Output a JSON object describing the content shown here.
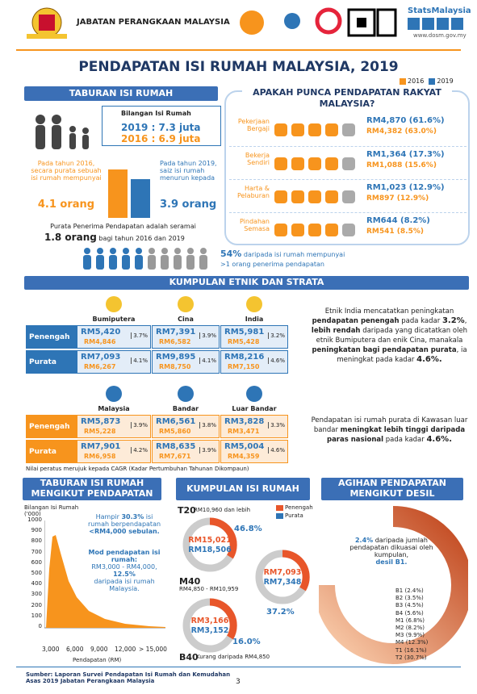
{
  "header": {
    "org": "JABATAN PERANGKAAN MALAYSIA",
    "brand": "StatsMalaysia",
    "url": "www.dosm.gov.my"
  },
  "title": "PENDAPATAN ISI RUMAH MALAYSIA, 2019",
  "legend": [
    {
      "label": "2016",
      "color": "#f7941d"
    },
    {
      "label": "2019",
      "color": "#2e75b6"
    }
  ],
  "household": {
    "heading": "TABURAN ISI RUMAH",
    "count_label": "Bilangan Isi Rumah",
    "count_2019": "2019 : 7.3 juta",
    "count_2016": "2016 : 6.9 juta",
    "size_2016_text": "Pada tahun 2016, secara purata sebuah isi rumah mempunyai",
    "size_2016": "4.1 orang",
    "size_2019_text": "Pada tahun 2019, saiz isi rumah menurun kepada",
    "size_2019": "3.9 orang",
    "earners_text": "Purata Penerima Pendapatan adalah seramai",
    "earners_value": "1.8 orang",
    "earners_suffix": "bagi tahun 2016 dan 2019",
    "share": "54%",
    "share_text": "daripada isi rumah mempunyai",
    "share_text2": ">1 orang penerima pendapatan"
  },
  "sources": {
    "heading": "APAKAH PUNCA PENDAPATAN RAKYAT MALAYSIA?",
    "rows": [
      {
        "label": "Pekerjaan Bergaji",
        "v2019": "RM4,870 (61.6%)",
        "v2016": "RM4,382 (63.0%)"
      },
      {
        "label": "Bekerja Sendiri",
        "v2019": "RM1,364 (17.3%)",
        "v2016": "RM1,088 (15.6%)"
      },
      {
        "label": "Harta & Pelaburan",
        "v2019": "RM1,023 (12.9%)",
        "v2016": "RM897 (12.9%)"
      },
      {
        "label": "Pindahan Semasa",
        "v2019": "RM644 (8.2%)",
        "v2016": "RM541 (8.5%)"
      }
    ]
  },
  "ethnic": {
    "heading": "KUMPULAN ETNIK DAN STRATA",
    "tables": [
      {
        "groups": [
          "Bumiputera",
          "Cina",
          "India"
        ],
        "color": "#2e75b6",
        "rows": [
          {
            "label": "Penengah",
            "cells": [
              {
                "v2019": "RM5,420",
                "v2016": "RM4,846",
                "cagr": "3.7%"
              },
              {
                "v2019": "RM7,391",
                "v2016": "RM6,582",
                "cagr": "3.9%"
              },
              {
                "v2019": "RM5,981",
                "v2016": "RM5,428",
                "cagr": "3.2%"
              }
            ]
          },
          {
            "label": "Purata",
            "cells": [
              {
                "v2019": "RM7,093",
                "v2016": "RM6,267",
                "cagr": "4.1%"
              },
              {
                "v2019": "RM9,895",
                "v2016": "RM8,750",
                "cagr": "4.1%"
              },
              {
                "v2019": "RM8,216",
                "v2016": "RM7,150",
                "cagr": "4.6%"
              }
            ]
          }
        ],
        "note": [
          {
            "text": "Etnik India mencatatkan peningkatan "
          },
          {
            "text": "pendapatan penengah",
            "bold": true
          },
          {
            "text": " pada kadar "
          },
          {
            "text": "3.2%",
            "bold": true,
            "big": true
          },
          {
            "text": ", "
          },
          {
            "text": "lebih rendah",
            "bold": true
          },
          {
            "text": " daripada yang dicatatkan oleh etnik Bumiputera dan enik Cina, manakala "
          },
          {
            "text": "peningkatan bagi pendapatan purata",
            "bold": true
          },
          {
            "text": ", ia meningkat pada kadar "
          },
          {
            "text": "4.6%.",
            "bold": true,
            "big": true
          }
        ]
      },
      {
        "groups": [
          "Malaysia",
          "Bandar",
          "Luar Bandar"
        ],
        "color": "#f7941d",
        "rows": [
          {
            "label": "Penengah",
            "cells": [
              {
                "v2019": "RM5,873",
                "v2016": "RM5,228",
                "cagr": "3.9%"
              },
              {
                "v2019": "RM6,561",
                "v2016": "RM5,860",
                "cagr": "3.8%"
              },
              {
                "v2019": "RM3,828",
                "v2016": "RM3,471",
                "cagr": "3.3%"
              }
            ]
          },
          {
            "label": "Purata",
            "cells": [
              {
                "v2019": "RM7,901",
                "v2016": "RM6,958",
                "cagr": "4.2%"
              },
              {
                "v2019": "RM8,635",
                "v2016": "RM7,671",
                "cagr": "3.9%"
              },
              {
                "v2019": "RM5,004",
                "v2016": "RM4,359",
                "cagr": "4.6%"
              }
            ]
          }
        ],
        "note": [
          {
            "text": "Pendapatan isi rumah purata di Kawasan luar bandar "
          },
          {
            "text": "meningkat lebih tinggi daripada paras nasional",
            "bold": true
          },
          {
            "text": " pada kadar "
          },
          {
            "text": "4.6%.",
            "bold": true,
            "big": true
          }
        ]
      }
    ],
    "cagr_note": "Nilai peratus merujuk kepada CAGR (Kadar Pertumbuhan Tahunan Dikompaun)"
  },
  "distribution": {
    "heading": "TABURAN ISI RUMAH MENGIKUT PENDAPATAN",
    "y_label": "Bilangan Isi Rumah ('000)",
    "yticks": [
      0,
      100,
      200,
      300,
      400,
      500,
      600,
      700,
      800,
      900,
      1000
    ],
    "xticks": [
      "3,000",
      "6,000",
      "9,000",
      "12,000",
      "> 15,000"
    ],
    "x_label": "Pendapatan (RM)",
    "note1_a": "Hampir ",
    "note1_b": "30.3%",
    "note1_c": " isi rumah berpendapatan ",
    "note1_d": "<RM4,000 sebulan.",
    "note2_a": "Mod pendapatan isi rumah:",
    "note2_b": "RM3,000 - RM4,000,",
    "note2_c": "12.5%",
    "note2_d": "daripada isi rumah Malaysia."
  },
  "groups": {
    "heading": "KUMPULAN ISI RUMAH",
    "legend": [
      {
        "label": "Penengah",
        "color": "#e8562a"
      },
      {
        "label": "Purata",
        "color": "#2e75b6"
      }
    ],
    "items": [
      {
        "name": "T20",
        "range": "RM10,960 dan lebih",
        "penengah": "RM15,021",
        "purata": "RM18,506",
        "share": "46.8%"
      },
      {
        "name": "M40",
        "range": "RM4,850 - RM10,959",
        "penengah": "RM7,093",
        "purata": "RM7,348",
        "share": "37.2%"
      },
      {
        "name": "B40",
        "range": "Kurang daripada RM4,850",
        "penengah": "RM3,166",
        "purata": "RM3,152",
        "share": "16.0%"
      }
    ]
  },
  "decile": {
    "heading": "AGIHAN PENDAPATAN MENGIKUT DESIL",
    "text_a": "2.4%",
    "text_b": " daripada jumlah pendapatan dikuasai oleh kumpulan,",
    "text_c": "desil B1.",
    "list": [
      "B1 (2.4%)",
      "B2 (3.5%)",
      "B3 (4.5%)",
      "B4 (5.6%)",
      "M1 (6.8%)",
      "M2 (8.2%)",
      "M3 (9.9%)",
      "M4 (12.3%)",
      "T1 (16.1%)",
      "T2 (30.7%)"
    ]
  },
  "footer": {
    "source": "Sumber: Laporan Survei Pendapatan Isi Rumah dan Kemudahan Asas 2019 Jabatan Perangkaan Malaysia",
    "page": "3"
  }
}
